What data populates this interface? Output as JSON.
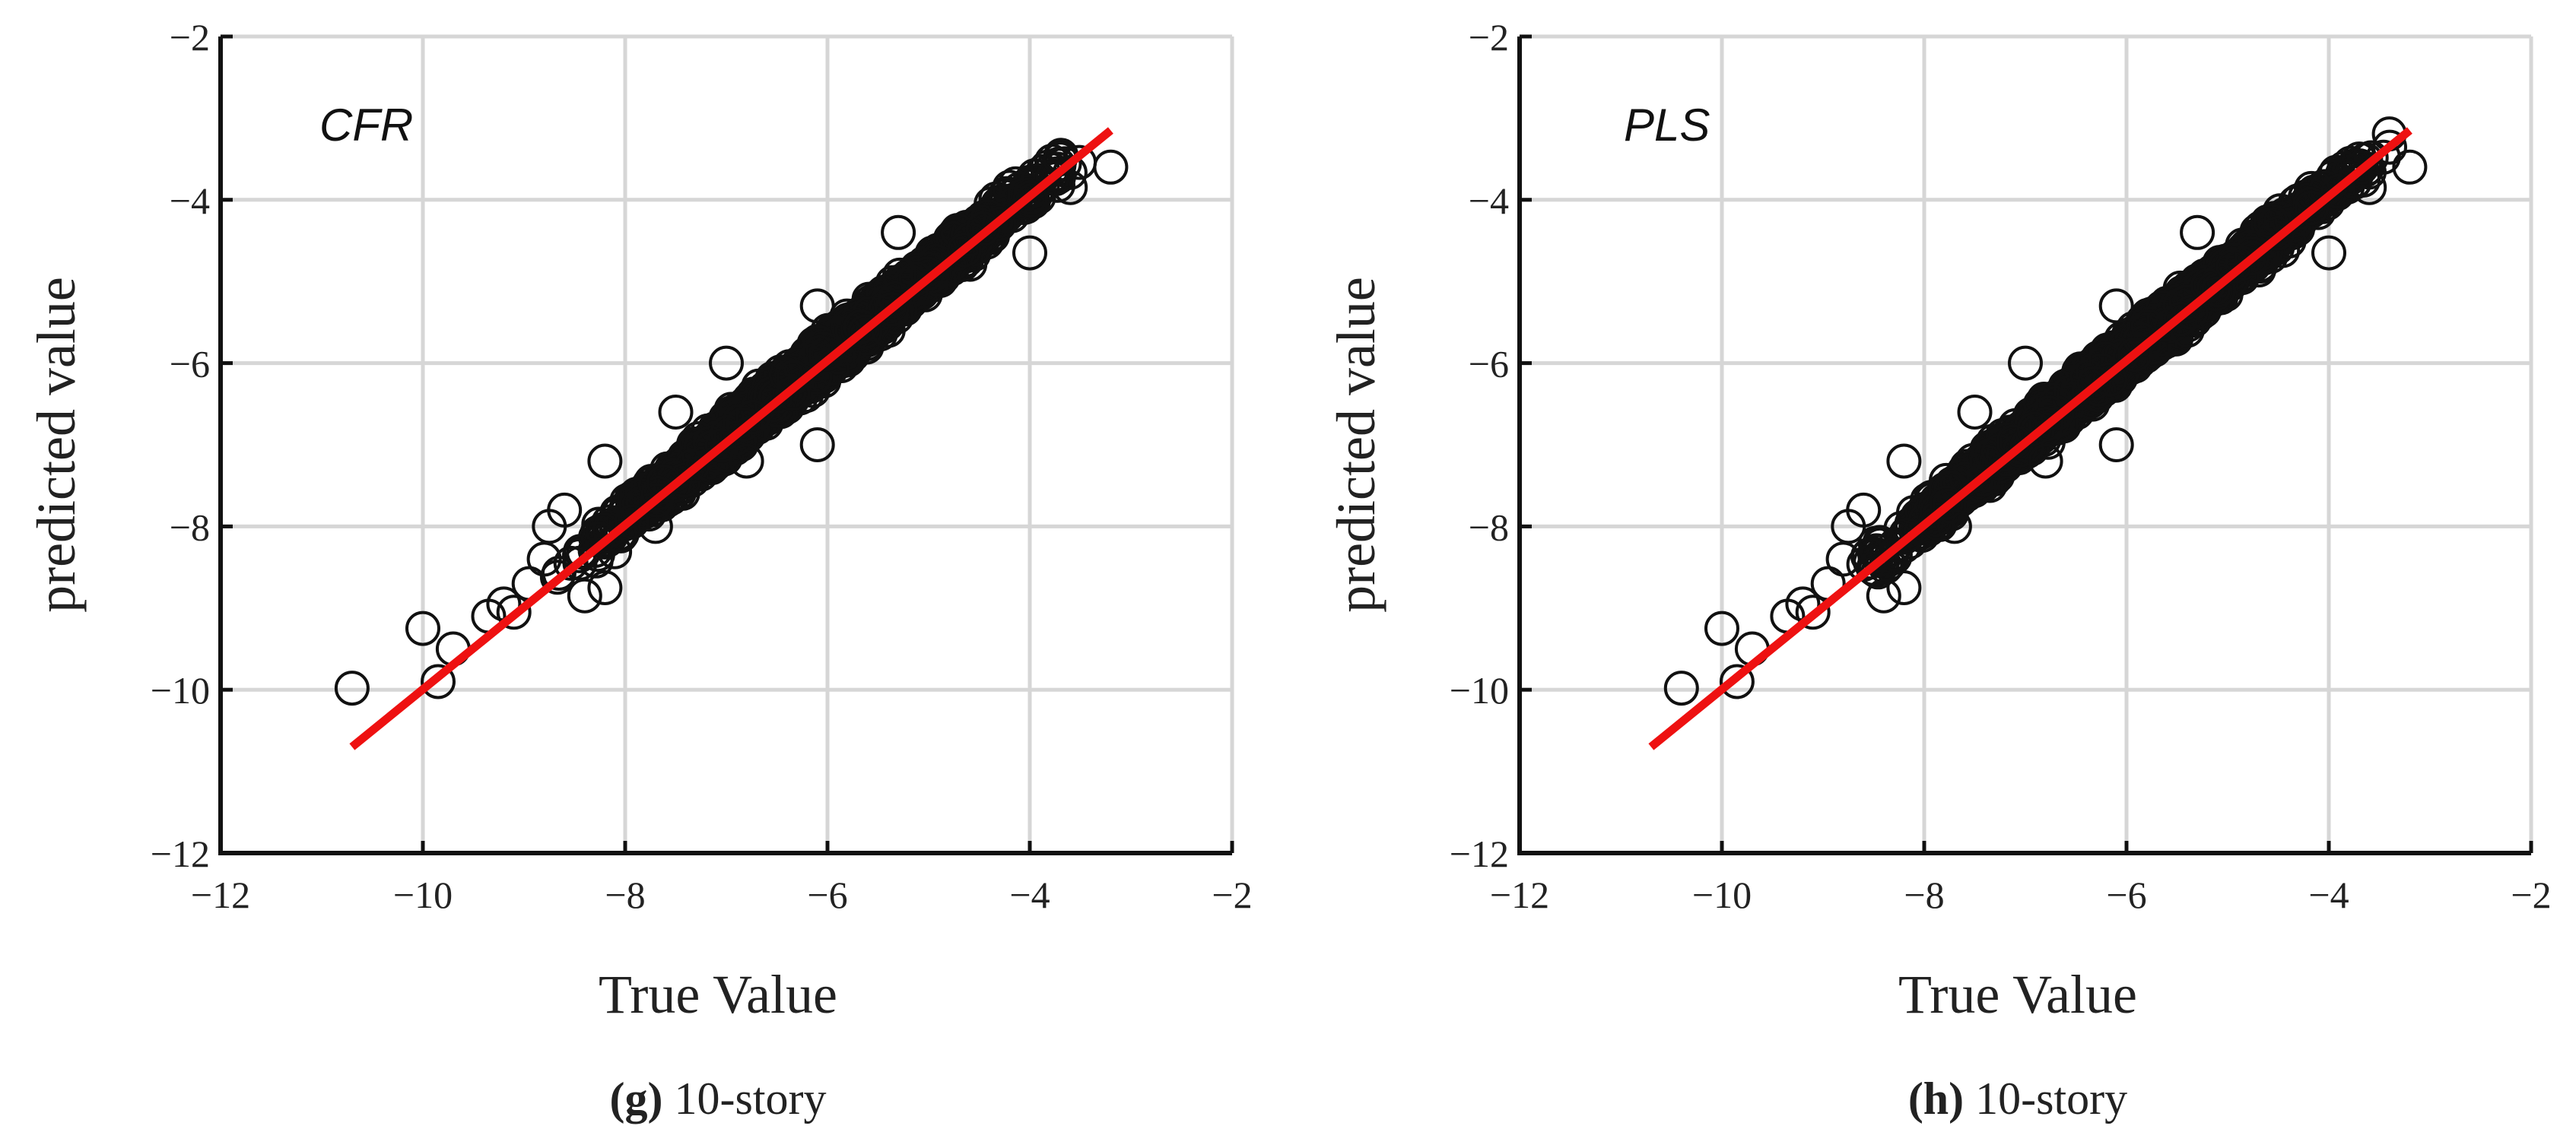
{
  "chart_data": [
    {
      "type": "scatter",
      "annotation": "CFR",
      "xlabel": "True Value",
      "ylabel": "predicted value",
      "xlim": [
        -12,
        -2
      ],
      "ylim": [
        -12,
        -2
      ],
      "xticks": [
        -12,
        -10,
        -8,
        -6,
        -4,
        -2
      ],
      "yticks": [
        -12,
        -10,
        -8,
        -6,
        -4,
        -2
      ],
      "xtick_labels": [
        "−12",
        "−10",
        "−8",
        "−6",
        "−4",
        "−2"
      ],
      "ytick_labels": [
        "−12",
        "−10",
        "−8",
        "−6",
        "−4",
        "−2"
      ],
      "grid": true,
      "fit_line": {
        "x": [
          -10.7,
          -3.2
        ],
        "y": [
          -10.7,
          -3.15
        ],
        "color": "#ee1111"
      },
      "outliers": [
        {
          "x": -10.7,
          "y": -9.98
        },
        {
          "x": -10.0,
          "y": -9.25
        },
        {
          "x": -9.85,
          "y": -9.9
        },
        {
          "x": -9.7,
          "y": -9.5
        },
        {
          "x": -9.35,
          "y": -9.1
        },
        {
          "x": -9.2,
          "y": -8.95
        },
        {
          "x": -9.1,
          "y": -9.05
        },
        {
          "x": -8.95,
          "y": -8.7
        },
        {
          "x": -8.8,
          "y": -8.4
        },
        {
          "x": -8.75,
          "y": -8.0
        },
        {
          "x": -8.6,
          "y": -7.8
        },
        {
          "x": -8.2,
          "y": -7.2
        },
        {
          "x": -7.5,
          "y": -6.6
        },
        {
          "x": -7.0,
          "y": -6.0
        },
        {
          "x": -6.1,
          "y": -5.3
        },
        {
          "x": -5.3,
          "y": -4.4
        },
        {
          "x": -8.4,
          "y": -8.85
        },
        {
          "x": -8.2,
          "y": -8.75
        },
        {
          "x": -7.7,
          "y": -8.0
        },
        {
          "x": -6.8,
          "y": -7.2
        },
        {
          "x": -6.1,
          "y": -7.0
        },
        {
          "x": -5.4,
          "y": -5.6
        },
        {
          "x": -4.0,
          "y": -4.65
        },
        {
          "x": -3.6,
          "y": -3.85
        },
        {
          "x": -3.2,
          "y": -3.6
        },
        {
          "x": -3.7,
          "y": -3.5
        }
      ],
      "cloud": {
        "x_range": [
          -8.9,
          -3.2
        ],
        "slope": 1.0,
        "intercept": 0.1,
        "spread": 0.35,
        "count": 2600
      },
      "caption_letter": "(g)",
      "caption_text": " 10-story"
    },
    {
      "type": "scatter",
      "annotation": "PLS",
      "xlabel": "True Value",
      "ylabel": "predicted value",
      "xlim": [
        -12,
        -2
      ],
      "ylim": [
        -12,
        -2
      ],
      "xticks": [
        -12,
        -10,
        -8,
        -6,
        -4,
        -2
      ],
      "yticks": [
        -12,
        -10,
        -8,
        -6,
        -4,
        -2
      ],
      "xtick_labels": [
        "−12",
        "−10",
        "−8",
        "−6",
        "−4",
        "−2"
      ],
      "ytick_labels": [
        "−12",
        "−10",
        "−8",
        "−6",
        "−4",
        "−2"
      ],
      "grid": true,
      "fit_line": {
        "x": [
          -10.7,
          -3.2
        ],
        "y": [
          -10.7,
          -3.15
        ],
        "color": "#ee1111"
      },
      "outliers": [
        {
          "x": -10.4,
          "y": -9.98
        },
        {
          "x": -10.0,
          "y": -9.25
        },
        {
          "x": -9.85,
          "y": -9.9
        },
        {
          "x": -9.7,
          "y": -9.5
        },
        {
          "x": -9.35,
          "y": -9.1
        },
        {
          "x": -9.2,
          "y": -8.95
        },
        {
          "x": -9.1,
          "y": -9.05
        },
        {
          "x": -8.95,
          "y": -8.7
        },
        {
          "x": -8.8,
          "y": -8.4
        },
        {
          "x": -8.75,
          "y": -8.0
        },
        {
          "x": -8.6,
          "y": -7.8
        },
        {
          "x": -8.2,
          "y": -7.2
        },
        {
          "x": -7.5,
          "y": -6.6
        },
        {
          "x": -7.0,
          "y": -6.0
        },
        {
          "x": -6.1,
          "y": -5.3
        },
        {
          "x": -5.3,
          "y": -4.4
        },
        {
          "x": -8.4,
          "y": -8.85
        },
        {
          "x": -8.2,
          "y": -8.75
        },
        {
          "x": -7.7,
          "y": -8.0
        },
        {
          "x": -6.8,
          "y": -7.2
        },
        {
          "x": -6.1,
          "y": -7.0
        },
        {
          "x": -5.4,
          "y": -5.6
        },
        {
          "x": -4.0,
          "y": -4.65
        },
        {
          "x": -3.6,
          "y": -3.85
        },
        {
          "x": -3.2,
          "y": -3.6
        },
        {
          "x": -3.7,
          "y": -3.5
        }
      ],
      "cloud": {
        "x_range": [
          -8.9,
          -3.2
        ],
        "slope": 1.0,
        "intercept": 0.1,
        "spread": 0.35,
        "count": 2600
      },
      "caption_letter": "(h)",
      "caption_text": " 10-story"
    }
  ]
}
